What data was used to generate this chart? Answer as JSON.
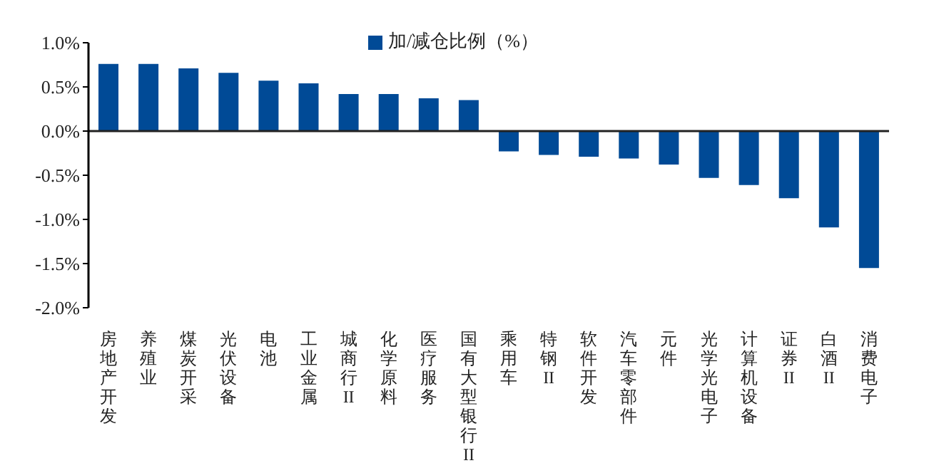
{
  "chart_data": {
    "type": "bar",
    "categories": [
      "房地产开发",
      "养殖业",
      "煤炭开采",
      "光伏设备",
      "电池",
      "工业金属",
      "城商行II",
      "化学原料",
      "医疗服务",
      "国有大型银行II",
      "乘用车",
      "特钢II",
      "软件开发",
      "汽车零部件",
      "元件",
      "光学光电子",
      "计算机设备",
      "证券II",
      "白酒II",
      "消费电子"
    ],
    "series": [
      {
        "name": "加/减仓比例（%）",
        "color": "#004a96",
        "values": [
          0.76,
          0.76,
          0.71,
          0.66,
          0.57,
          0.54,
          0.42,
          0.42,
          0.37,
          0.35,
          -0.23,
          -0.27,
          -0.29,
          -0.31,
          -0.38,
          -0.53,
          -0.61,
          -0.76,
          -1.09,
          -1.55
        ]
      }
    ],
    "ylim": [
      -2,
      1
    ],
    "yticks": [
      {
        "value": -2,
        "label": "-2.0%"
      },
      {
        "value": -1.5,
        "label": "-1.5%"
      },
      {
        "value": -1,
        "label": "-1.0%"
      },
      {
        "value": -0.5,
        "label": "-0.5%"
      },
      {
        "value": 0,
        "label": "0.0%"
      },
      {
        "value": 0.5,
        "label": "0.5%"
      },
      {
        "value": 1,
        "label": "1.0%"
      }
    ],
    "grid": false,
    "ref_lines": [
      {
        "axis": "y",
        "value": 0,
        "color": "#222222"
      }
    ],
    "legend": "top"
  }
}
